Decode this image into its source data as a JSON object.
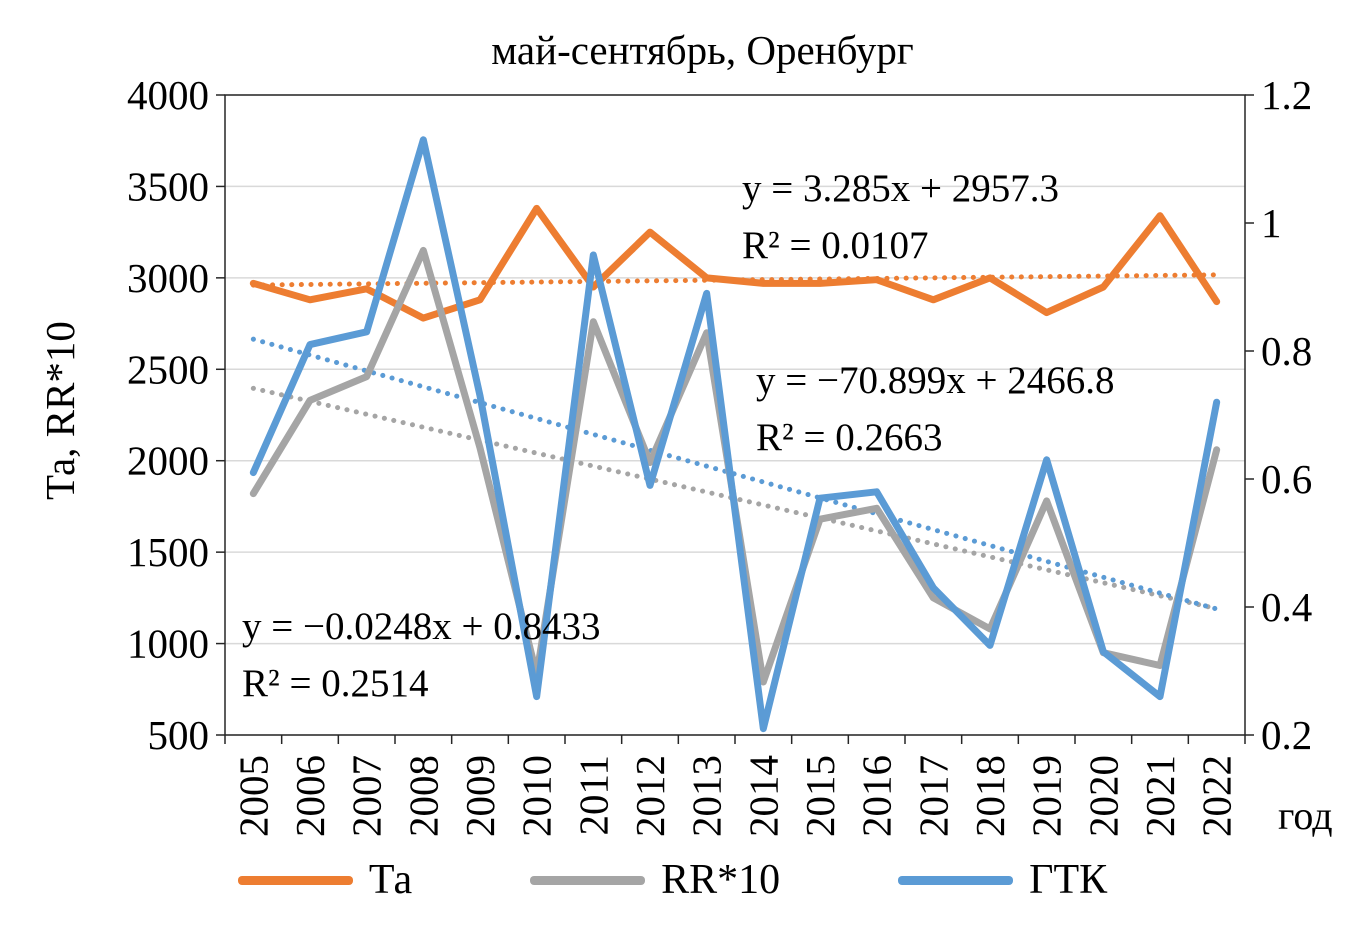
{
  "chart_data": {
    "type": "line",
    "title": "май-сентябрь, Оренбург",
    "categories": [
      "2005",
      "2006",
      "2007",
      "2008",
      "2009",
      "2010",
      "2011",
      "2012",
      "2013",
      "2014",
      "2015",
      "2016",
      "2017",
      "2018",
      "2019",
      "2020",
      "2021",
      "2022"
    ],
    "axes": {
      "left": {
        "label": "Та, RR*10",
        "min": 500,
        "max": 4000,
        "step": 500,
        "ticks": [
          "500",
          "1000",
          "1500",
          "2000",
          "2500",
          "3000",
          "3500",
          "4000"
        ]
      },
      "right": {
        "min": 0.2,
        "max": 1.2,
        "step": 0.2,
        "ticks": [
          "0.2",
          "0.4",
          "0.6",
          "0.8",
          "1",
          "1.2"
        ]
      },
      "x": {
        "unit_label": "год"
      }
    },
    "gridlines": true,
    "legend_position": "bottom",
    "series": [
      {
        "name": "Та",
        "axis": "left",
        "color": "#ED7D31",
        "values": [
          2970,
          2880,
          2940,
          2780,
          2880,
          3380,
          2950,
          3250,
          3000,
          2970,
          2970,
          2990,
          2880,
          3000,
          2810,
          2950,
          3340,
          2870
        ],
        "trend": {
          "slope": 3.285,
          "intercept": 2957.3,
          "r2": 0.0107
        }
      },
      {
        "name": "RR*10",
        "axis": "left",
        "color": "#A5A5A5",
        "values": [
          1820,
          2330,
          2460,
          3150,
          2070,
          830,
          2760,
          1990,
          2700,
          790,
          1680,
          1740,
          1250,
          1080,
          1780,
          950,
          880,
          2060
        ],
        "trend": {
          "slope": -70.899,
          "intercept": 2466.8,
          "r2": 0.2663
        }
      },
      {
        "name": "ГТК",
        "axis": "right",
        "color": "#5B9BD5",
        "values": [
          0.61,
          0.81,
          0.83,
          1.13,
          0.73,
          0.26,
          0.95,
          0.59,
          0.89,
          0.21,
          0.57,
          0.58,
          0.43,
          0.34,
          0.63,
          0.33,
          0.26,
          0.72
        ],
        "trend": {
          "slope": -0.0248,
          "intercept": 0.8433,
          "r2": 0.2514
        }
      }
    ],
    "annotations": {
      "ta": {
        "line1": "y = 3.285x + 2957.3",
        "line2": "R² = 0.0107"
      },
      "rr": {
        "line1": "y = −70.899x + 2466.8",
        "line2": "R² = 0.2663"
      },
      "gtk": {
        "line1": "y = −0.0248x + 0.8433",
        "line2": "R² = 0.2514"
      }
    }
  }
}
